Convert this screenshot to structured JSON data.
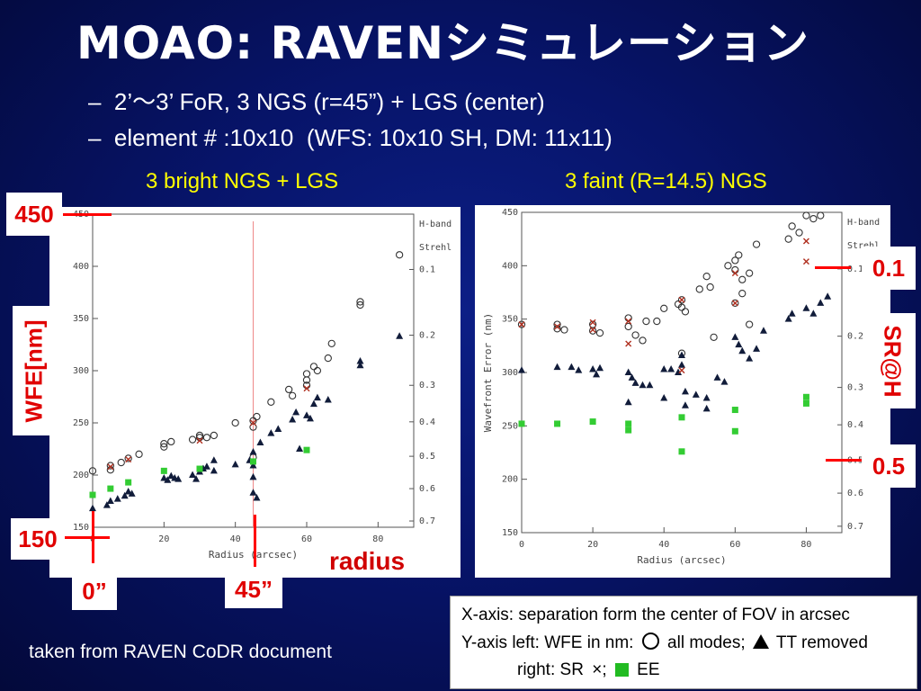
{
  "slide": {
    "title": "MOAO: RAVENシミュレーション",
    "bullets": [
      "–  2’〜3’ FoR, 3 NGS (r=45”) + LGS (center)",
      "–  element # :10x10  (WFS: 10x10 SH, DM: 11x11)"
    ],
    "footer": "taken from RAVEN CoDR document"
  },
  "annotations": {
    "wfe_label": "WFE[nm]",
    "sr_label": "SR@H",
    "y450": "450",
    "y150": "150",
    "x0": "0”",
    "x45": "45”",
    "radius": "radius",
    "sr01": "0.1",
    "sr05": "0.5"
  },
  "legend_note": {
    "line1": "X-axis: separation form the center of FOV in arcsec",
    "line2_a": "Y-axis left: WFE in nm:",
    "line2_b": "all modes;",
    "line2_c": "TT removed",
    "line3_a": "right: SR",
    "line3_b": "×",
    "line3_c": ";",
    "line3_d": "EE"
  },
  "colors": {
    "background": "#07146a",
    "subtitle": "#ffff00",
    "annotation_red": "#d00000",
    "ee_green": "#33cc33",
    "sr_cross": "#b03020"
  },
  "chart_data": [
    {
      "type": "scatter",
      "title": "3 bright  NGS + LGS",
      "xlabel": "Radius (arcsec)",
      "ylabel": "",
      "xlim": [
        0,
        90
      ],
      "ylim": [
        150,
        450
      ],
      "x_ticks": [
        0,
        20,
        40,
        60,
        80
      ],
      "y_ticks": [
        150,
        200,
        250,
        300,
        350,
        400,
        450
      ],
      "right_axis": {
        "label_top": "H-band",
        "label_sub": "Strehl",
        "ticks": [
          "0.1",
          "0.2",
          "0.3",
          "0.4",
          "0.5",
          "0.6",
          "0.7"
        ]
      },
      "vertical_marker_x": 45,
      "series": [
        {
          "marker": "circle",
          "points": [
            [
              0,
              204
            ],
            [
              5,
              209
            ],
            [
              5,
              205
            ],
            [
              8,
              212
            ],
            [
              10,
              216
            ],
            [
              13,
              220
            ],
            [
              20,
              230
            ],
            [
              20,
              227
            ],
            [
              22,
              232
            ],
            [
              28,
              234
            ],
            [
              30,
              238
            ],
            [
              30,
              236
            ],
            [
              32,
              236
            ],
            [
              34,
              238
            ],
            [
              40,
              250
            ],
            [
              45,
              252
            ],
            [
              46,
              256
            ],
            [
              45,
              246
            ],
            [
              50,
              270
            ],
            [
              55,
              282
            ],
            [
              56,
              276
            ],
            [
              60,
              286
            ],
            [
              60,
              291
            ],
            [
              60,
              297
            ],
            [
              62,
              304
            ],
            [
              63,
              300
            ],
            [
              66,
              312
            ],
            [
              67,
              326
            ],
            [
              75,
              366
            ],
            [
              75,
              363
            ],
            [
              86,
              411
            ],
            [
              45,
              217
            ]
          ]
        },
        {
          "marker": "triangle",
          "points": [
            [
              0,
              168
            ],
            [
              4,
              171
            ],
            [
              5,
              175
            ],
            [
              7,
              177
            ],
            [
              9,
              180
            ],
            [
              10,
              184
            ],
            [
              11,
              182
            ],
            [
              20,
              197
            ],
            [
              21,
              195
            ],
            [
              22,
              199
            ],
            [
              23,
              197
            ],
            [
              24,
              196
            ],
            [
              28,
              200
            ],
            [
              29,
              196
            ],
            [
              30,
              203
            ],
            [
              31,
              206
            ],
            [
              32,
              208
            ],
            [
              34,
              214
            ],
            [
              34,
              204
            ],
            [
              40,
              210
            ],
            [
              44,
              214
            ],
            [
              45,
              222
            ],
            [
              45,
              209
            ],
            [
              45,
              198
            ],
            [
              45,
              183
            ],
            [
              46,
              178
            ],
            [
              47,
              231
            ],
            [
              50,
              240
            ],
            [
              52,
              244
            ],
            [
              56,
              253
            ],
            [
              57,
              260
            ],
            [
              60,
              257
            ],
            [
              61,
              254
            ],
            [
              62,
              268
            ],
            [
              63,
              274
            ],
            [
              66,
              272
            ],
            [
              75,
              309
            ],
            [
              75,
              305
            ],
            [
              86,
              333
            ],
            [
              58,
              225
            ]
          ]
        },
        {
          "marker": "square",
          "points": [
            [
              0,
              181
            ],
            [
              5,
              187
            ],
            [
              10,
              193
            ],
            [
              20,
              204
            ],
            [
              30,
              206
            ],
            [
              45,
              213
            ],
            [
              60,
              224
            ]
          ]
        },
        {
          "marker": "cross",
          "points": [
            [
              5,
              208
            ],
            [
              10,
              215
            ],
            [
              30,
              233
            ],
            [
              45,
              250
            ],
            [
              60,
              283
            ]
          ]
        }
      ]
    },
    {
      "type": "scatter",
      "title": "3 faint (R=14.5) NGS",
      "xlabel": "Radius (arcsec)",
      "ylabel": "Wavefront Error (nm)",
      "xlim": [
        0,
        90
      ],
      "ylim": [
        150,
        450
      ],
      "x_ticks": [
        0,
        20,
        40,
        60,
        80
      ],
      "y_ticks": [
        150,
        200,
        250,
        300,
        350,
        400,
        450
      ],
      "right_axis": {
        "label_top": "H-band",
        "label_sub": "Strehl",
        "ticks": [
          "0.1",
          "0.2",
          "0.3",
          "0.4",
          "0.5",
          "0.6",
          "0.7"
        ]
      },
      "series": [
        {
          "marker": "circle",
          "points": [
            [
              0,
              345
            ],
            [
              10,
              345
            ],
            [
              10,
              341
            ],
            [
              12,
              340
            ],
            [
              20,
              345
            ],
            [
              20,
              339
            ],
            [
              22,
              337
            ],
            [
              30,
              351
            ],
            [
              30,
              343
            ],
            [
              32,
              335
            ],
            [
              34,
              330
            ],
            [
              35,
              348
            ],
            [
              38,
              348
            ],
            [
              40,
              360
            ],
            [
              44,
              364
            ],
            [
              45,
              368
            ],
            [
              45,
              361
            ],
            [
              46,
              357
            ],
            [
              50,
              378
            ],
            [
              52,
              390
            ],
            [
              53,
              380
            ],
            [
              58,
              400
            ],
            [
              60,
              405
            ],
            [
              60,
              396
            ],
            [
              61,
              410
            ],
            [
              62,
              387
            ],
            [
              64,
              393
            ],
            [
              66,
              420
            ],
            [
              75,
              425
            ],
            [
              76,
              437
            ],
            [
              78,
              431
            ],
            [
              80,
              447
            ],
            [
              82,
              444
            ],
            [
              84,
              447
            ],
            [
              45,
              318
            ],
            [
              54,
              333
            ],
            [
              60,
              365
            ],
            [
              62,
              374
            ],
            [
              64,
              345
            ]
          ]
        },
        {
          "marker": "triangle",
          "points": [
            [
              0,
              302
            ],
            [
              10,
              305
            ],
            [
              14,
              305
            ],
            [
              16,
              302
            ],
            [
              20,
              303
            ],
            [
              21,
              298
            ],
            [
              22,
              304
            ],
            [
              30,
              300
            ],
            [
              31,
              295
            ],
            [
              32,
              290
            ],
            [
              34,
              288
            ],
            [
              36,
              288
            ],
            [
              40,
              303
            ],
            [
              42,
              303
            ],
            [
              44,
              300
            ],
            [
              45,
              316
            ],
            [
              45,
              307
            ],
            [
              46,
              282
            ],
            [
              49,
              279
            ],
            [
              52,
              276
            ],
            [
              55,
              295
            ],
            [
              57,
              291
            ],
            [
              60,
              333
            ],
            [
              61,
              326
            ],
            [
              62,
              320
            ],
            [
              64,
              313
            ],
            [
              66,
              322
            ],
            [
              68,
              339
            ],
            [
              75,
              350
            ],
            [
              76,
              355
            ],
            [
              80,
              360
            ],
            [
              82,
              355
            ],
            [
              84,
              365
            ],
            [
              86,
              371
            ],
            [
              46,
              269
            ],
            [
              52,
              266
            ],
            [
              30,
              272
            ],
            [
              40,
              276
            ]
          ]
        },
        {
          "marker": "square",
          "points": [
            [
              0,
              252
            ],
            [
              10,
              252
            ],
            [
              20,
              254
            ],
            [
              30,
              252
            ],
            [
              30,
              246
            ],
            [
              45,
              258
            ],
            [
              45,
              226
            ],
            [
              60,
              265
            ],
            [
              60,
              245
            ],
            [
              80,
              277
            ],
            [
              80,
              271
            ]
          ]
        },
        {
          "marker": "cross",
          "points": [
            [
              0,
              345
            ],
            [
              10,
              343
            ],
            [
              20,
              347
            ],
            [
              20,
              340
            ],
            [
              30,
              348
            ],
            [
              30,
              327
            ],
            [
              45,
              368
            ],
            [
              45,
              302
            ],
            [
              60,
              393
            ],
            [
              60,
              365
            ],
            [
              80,
              423
            ],
            [
              80,
              404
            ]
          ]
        }
      ]
    }
  ]
}
